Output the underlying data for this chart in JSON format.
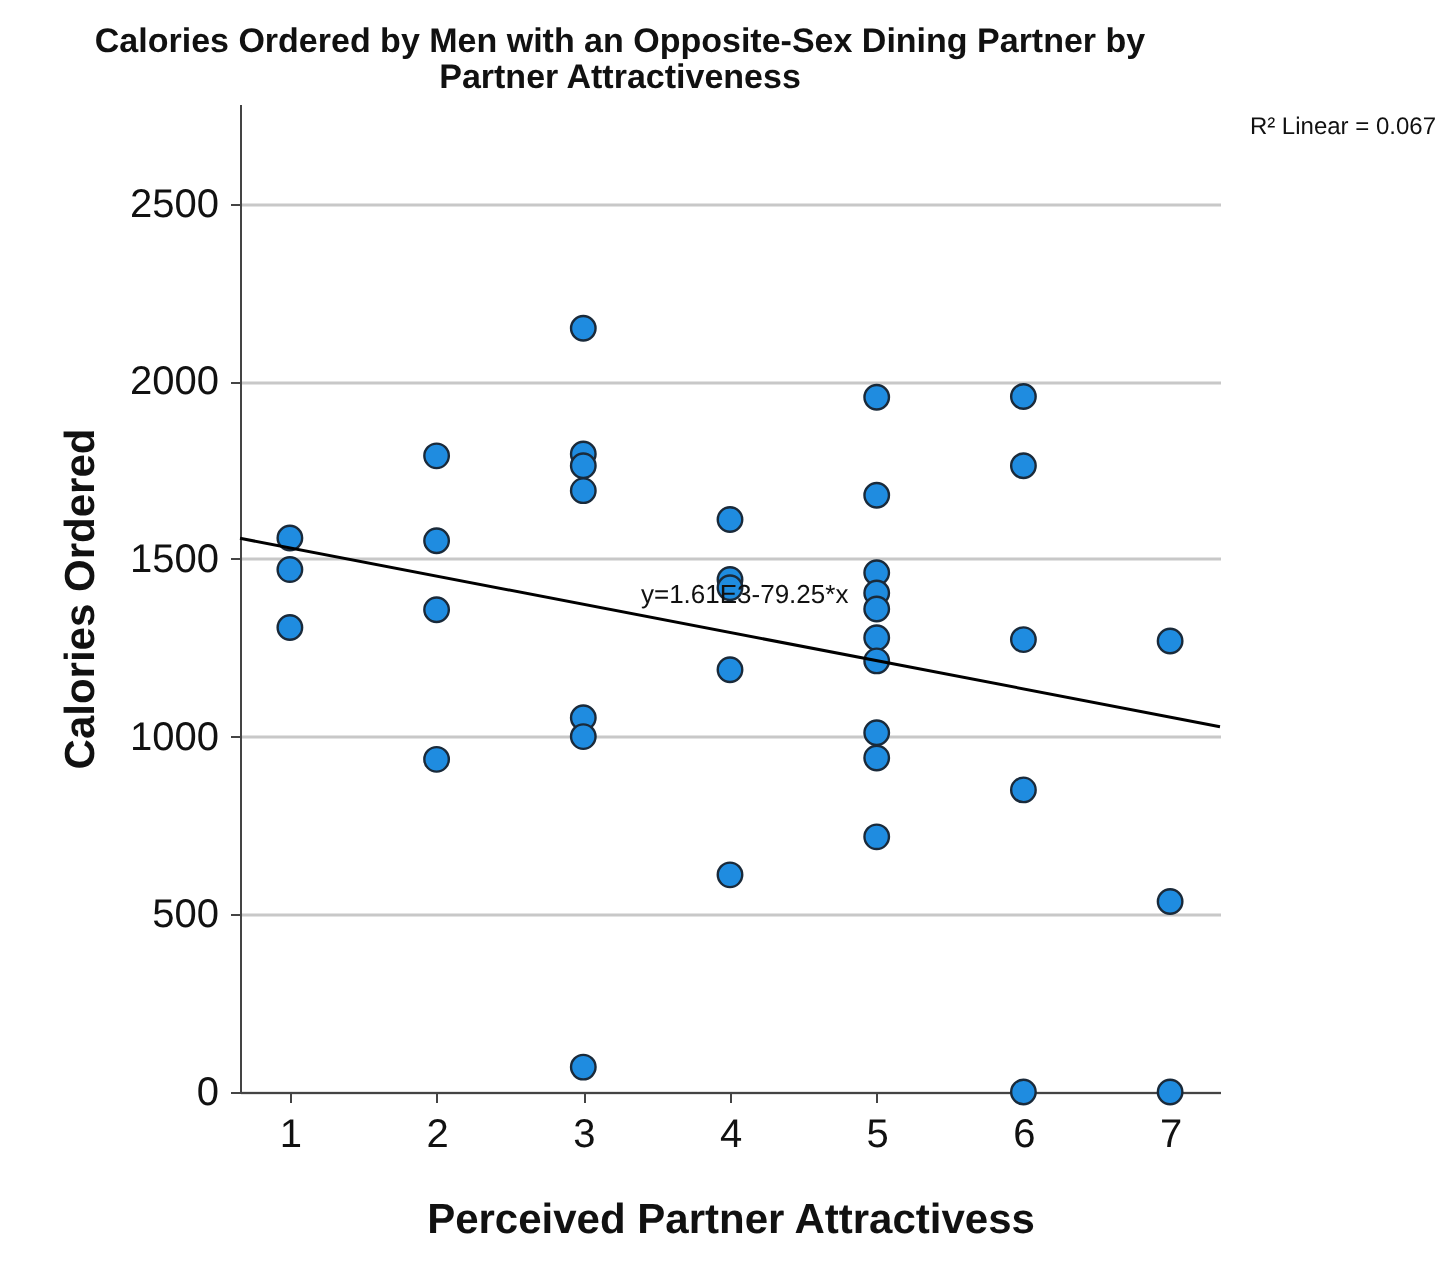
{
  "chart_data": {
    "type": "scatter",
    "title": "Calories Ordered by Men with an Opposite-Sex Dining Partner by Partner Attractiveness",
    "xlabel": "Perceived Partner Attractivess",
    "ylabel": "Calories Ordered",
    "annotations": [
      {
        "text": "y=1.61E3-79.25*x",
        "x": 4.1,
        "y": 1285
      },
      "R² Linear = 0.067"
    ],
    "xlim": [
      0.66,
      7.34
    ],
    "xticks": [
      1,
      2,
      3,
      4,
      5,
      6,
      7
    ],
    "ylim": [
      0,
      2780
    ],
    "yticks": [
      0,
      500,
      1000,
      1500,
      2000,
      2500
    ],
    "grid": "y",
    "marker": "circle",
    "series": [
      {
        "color": "#1f8ce0",
        "x": [
          1,
          1,
          1,
          2,
          2,
          2,
          2,
          3,
          3,
          3,
          3,
          3,
          3,
          3,
          4,
          4,
          4,
          4,
          4,
          5,
          5,
          5,
          5,
          5,
          5,
          5,
          5,
          5,
          5,
          6,
          6,
          6,
          6,
          6,
          7,
          7,
          7
        ],
        "values": [
          1559,
          1470,
          1307,
          1790,
          1551,
          1357,
          936,
          2149,
          1795,
          1762,
          1692,
          1053,
          1000,
          70,
          1611,
          1442,
          1419,
          1188,
          611,
          1955,
          1679,
          1461,
          1404,
          1359,
          1278,
          1213,
          1011,
          940,
          718,
          1957,
          1762,
          1273,
          850,
          0,
          1269,
          536,
          0
        ]
      },
      {
        "type": "line",
        "color": "#000000",
        "x": [
          0.66,
          7.34
        ],
        "values": [
          1558,
          1028
        ],
        "line_style": "solid",
        "marker": "none"
      }
    ]
  }
}
